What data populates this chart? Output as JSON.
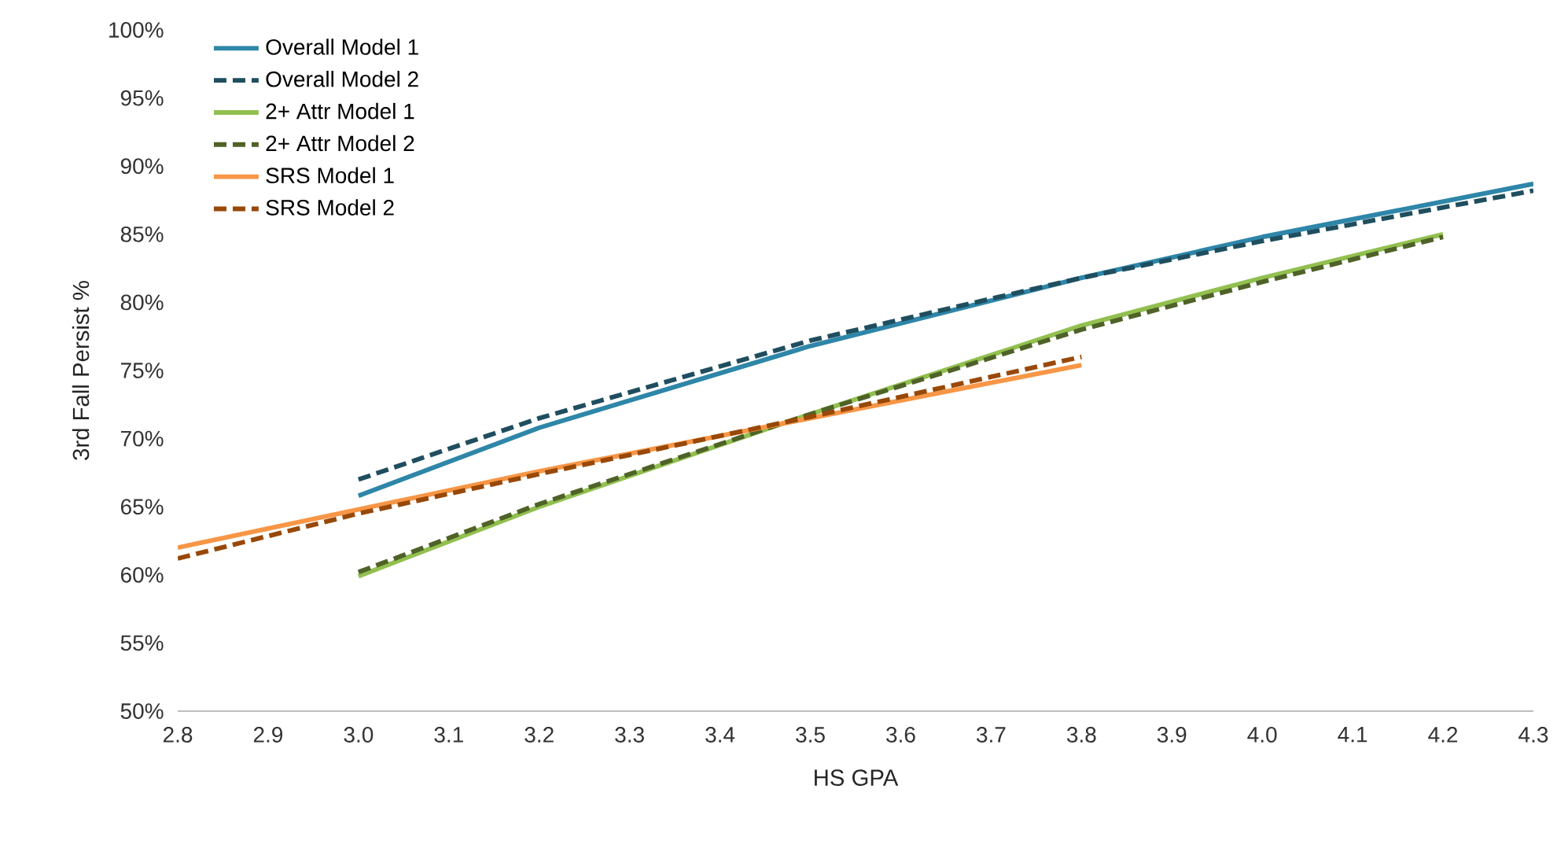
{
  "chart_data": {
    "type": "line",
    "xlabel": "HS GPA",
    "ylabel": "3rd Fall Persist %",
    "xlim": [
      2.8,
      4.3
    ],
    "ylim": [
      50,
      100
    ],
    "xticks": [
      2.8,
      2.9,
      {
        "value": 3.0,
        "label": "3.0"
      },
      3.1,
      3.2,
      3.3,
      3.4,
      3.5,
      3.6,
      3.7,
      3.8,
      3.9,
      {
        "value": 4.0,
        "label": "4.0"
      },
      4.1,
      4.2,
      4.3
    ],
    "yticks": [
      {
        "value": 50,
        "label": "50%"
      },
      {
        "value": 55,
        "label": "55%"
      },
      {
        "value": 60,
        "label": "60%"
      },
      {
        "value": 65,
        "label": "65%"
      },
      {
        "value": 70,
        "label": "70%"
      },
      {
        "value": 75,
        "label": "75%"
      },
      {
        "value": 80,
        "label": "80%"
      },
      {
        "value": 85,
        "label": "85%"
      },
      {
        "value": 90,
        "label": "90%"
      },
      {
        "value": 95,
        "label": "95%"
      },
      {
        "value": 100,
        "label": "100%"
      }
    ],
    "legend": "top left",
    "marker": "none",
    "series": [
      {
        "name": "Overall Model 1",
        "color": "#2e86a8",
        "line_style": "solid",
        "x": [
          3.0,
          3.2,
          3.5,
          3.8,
          4.0,
          4.3
        ],
        "values": [
          65.8,
          70.8,
          76.8,
          81.8,
          84.8,
          88.7
        ]
      },
      {
        "name": "Overall Model 2",
        "color": "#1f4e5f",
        "line_style": "dashed",
        "x": [
          3.0,
          3.2,
          3.5,
          3.8,
          4.0,
          4.3
        ],
        "values": [
          67.0,
          71.5,
          77.2,
          81.8,
          84.5,
          88.2
        ]
      },
      {
        "name": "2+ Attr Model 1",
        "color": "#92c050",
        "line_style": "solid",
        "x": [
          3.0,
          3.2,
          3.5,
          3.8,
          4.0,
          4.2
        ],
        "values": [
          59.9,
          65.0,
          71.8,
          78.3,
          81.8,
          85.0
        ]
      },
      {
        "name": "2+ Attr Model 2",
        "color": "#4f6228",
        "line_style": "dashed",
        "x": [
          3.0,
          3.2,
          3.5,
          3.8,
          4.0,
          4.2
        ],
        "values": [
          60.2,
          65.2,
          71.8,
          78.0,
          81.5,
          84.8
        ]
      },
      {
        "name": "SRS Model 1",
        "color": "#f79646",
        "line_style": "solid",
        "x": [
          2.8,
          3.0,
          3.2,
          3.5,
          3.8
        ],
        "values": [
          62.0,
          64.8,
          67.6,
          71.5,
          75.4
        ]
      },
      {
        "name": "SRS Model 2",
        "color": "#984807",
        "line_style": "dashed",
        "x": [
          2.8,
          3.0,
          3.2,
          3.5,
          3.8
        ],
        "values": [
          61.2,
          64.5,
          67.4,
          71.6,
          76.0
        ]
      }
    ]
  }
}
